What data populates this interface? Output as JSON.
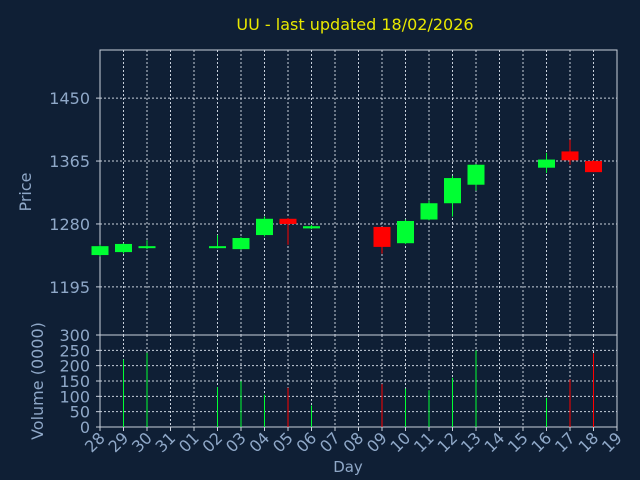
{
  "chart_data": [
    {
      "type": "candlestick",
      "title": "UU - last updated 18/02/2026",
      "ylabel": "Price",
      "ylim": [
        1130,
        1515
      ],
      "yticks": [
        1195,
        1280,
        1365,
        1450
      ],
      "ytick_labels": [
        "1195",
        "1280",
        "1365",
        "1450"
      ],
      "grid": true,
      "up_color": "#00ff33",
      "down_color": "#ff0000",
      "candles": [
        {
          "day": "28",
          "open": 1238,
          "close": 1250,
          "high": 1252,
          "low": 1236
        },
        {
          "day": "29",
          "open": 1242,
          "close": 1253,
          "high": 1254,
          "low": 1240
        },
        {
          "day": "30",
          "open": 1248,
          "close": 1250,
          "high": 1258,
          "low": 1246
        },
        {
          "day": "02",
          "open": 1248,
          "close": 1250,
          "high": 1265,
          "low": 1247
        },
        {
          "day": "03",
          "open": 1246,
          "close": 1261,
          "high": 1262,
          "low": 1245
        },
        {
          "day": "04",
          "open": 1265,
          "close": 1287,
          "high": 1290,
          "low": 1263
        },
        {
          "day": "05",
          "open": 1287,
          "close": 1280,
          "high": 1288,
          "low": 1252
        },
        {
          "day": "06",
          "open": 1274,
          "close": 1277,
          "high": 1279,
          "low": 1273
        },
        {
          "day": "09",
          "open": 1276,
          "close": 1249,
          "high": 1276,
          "low": 1240
        },
        {
          "day": "10",
          "open": 1254,
          "close": 1284,
          "high": 1286,
          "low": 1253
        },
        {
          "day": "11",
          "open": 1286,
          "close": 1308,
          "high": 1312,
          "low": 1285
        },
        {
          "day": "12",
          "open": 1308,
          "close": 1342,
          "high": 1345,
          "low": 1290
        },
        {
          "day": "13",
          "open": 1333,
          "close": 1360,
          "high": 1361,
          "low": 1325
        },
        {
          "day": "16",
          "open": 1356,
          "close": 1367,
          "high": 1376,
          "low": 1349
        },
        {
          "day": "17",
          "open": 1378,
          "close": 1366,
          "high": 1394,
          "low": 1360
        },
        {
          "day": "18",
          "open": 1365,
          "close": 1350,
          "high": 1366,
          "low": 1350
        }
      ]
    },
    {
      "type": "bar",
      "ylabel": "Volume (0000)",
      "xlabel": "Day",
      "ylim": [
        0,
        300
      ],
      "yticks": [
        0,
        50,
        100,
        150,
        200,
        250,
        300
      ],
      "ytick_labels": [
        "0",
        "50",
        "100",
        "150",
        "200",
        "250",
        "300"
      ],
      "grid": true,
      "categories": [
        "28",
        "29",
        "30",
        "31",
        "01",
        "02",
        "03",
        "04",
        "05",
        "06",
        "07",
        "08",
        "09",
        "10",
        "11",
        "12",
        "13",
        "14",
        "15",
        "16",
        "17",
        "18",
        "19"
      ],
      "bars": [
        {
          "day": "29",
          "value": 220,
          "direction": "up"
        },
        {
          "day": "30",
          "value": 242,
          "direction": "up"
        },
        {
          "day": "02",
          "value": 130,
          "direction": "up"
        },
        {
          "day": "03",
          "value": 150,
          "direction": "up"
        },
        {
          "day": "04",
          "value": 105,
          "direction": "up"
        },
        {
          "day": "05",
          "value": 128,
          "direction": "down"
        },
        {
          "day": "06",
          "value": 70,
          "direction": "up"
        },
        {
          "day": "09",
          "value": 140,
          "direction": "down"
        },
        {
          "day": "10",
          "value": 125,
          "direction": "up"
        },
        {
          "day": "11",
          "value": 120,
          "direction": "up"
        },
        {
          "day": "12",
          "value": 160,
          "direction": "up"
        },
        {
          "day": "13",
          "value": 250,
          "direction": "up"
        },
        {
          "day": "16",
          "value": 95,
          "direction": "up"
        },
        {
          "day": "17",
          "value": 155,
          "direction": "down"
        },
        {
          "day": "18",
          "value": 240,
          "direction": "down"
        }
      ]
    }
  ]
}
